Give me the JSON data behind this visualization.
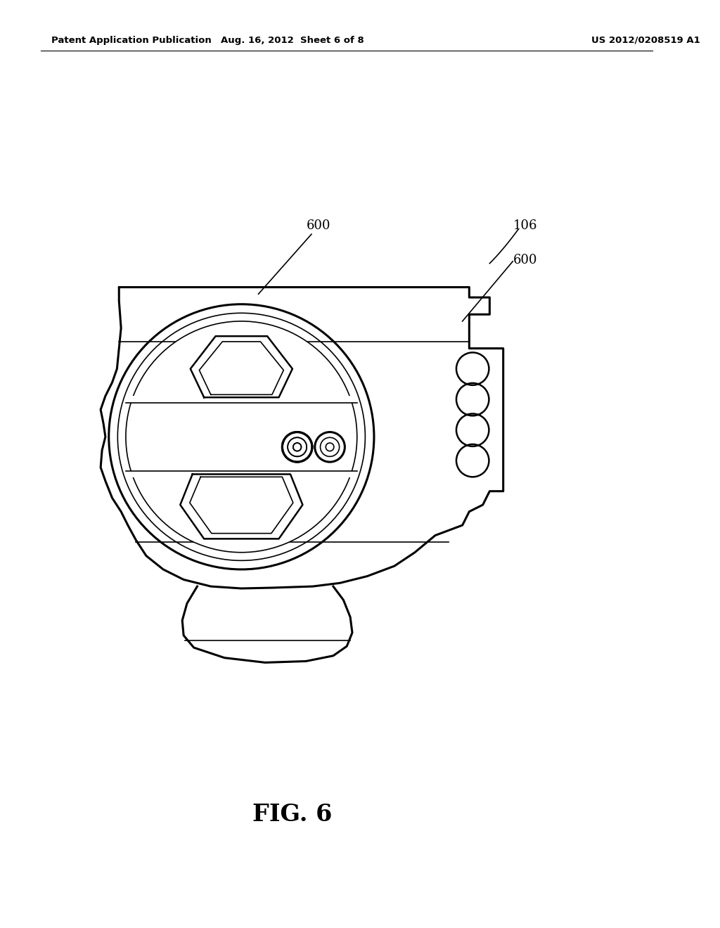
{
  "background_color": "#ffffff",
  "line_color": "#000000",
  "header_left": "Patent Application Publication",
  "header_mid": "Aug. 16, 2012  Sheet 6 of 8",
  "header_right": "US 2012/0208519 A1",
  "figure_label": "FIG. 6"
}
